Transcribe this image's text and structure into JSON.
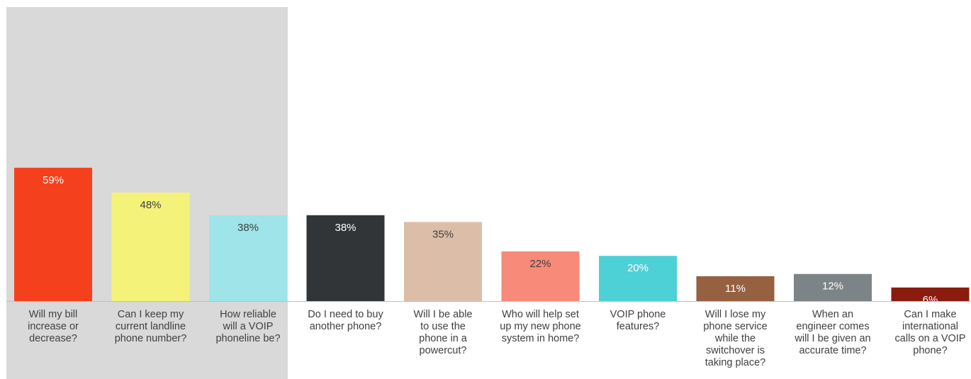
{
  "chart_data": {
    "type": "bar",
    "categories": [
      "Will my bill\nincrease or\ndecrease?",
      "Can I keep my\ncurrent landline\nphone number?",
      "How reliable\nwill a VOIP\nphoneline be?",
      "Do I need to buy\nanother phone?",
      "Will I be able\nto use the\nphone in a\npowercut?",
      "Who will help set\nup my new phone\nsystem in home?",
      "VOIP phone\nfeatures?",
      "Will I lose my\nphone service\nwhile the\nswitchover is\ntaking place?",
      "When an\nengineer comes\nwill I be given an\naccurate time?",
      "Can I make\ninternational\ncalls on a VOIP\nphone?"
    ],
    "values": [
      59,
      48,
      38,
      38,
      35,
      22,
      20,
      11,
      12,
      6
    ],
    "value_labels": [
      "59%",
      "48%",
      "38%",
      "38%",
      "35%",
      "22%",
      "20%",
      "11%",
      "12%",
      "6%"
    ],
    "bar_colors": [
      "#f5401e",
      "#f5f27a",
      "#9ee4e8",
      "#323538",
      "#dcbea8",
      "#f78a78",
      "#4dd0d6",
      "#956140",
      "#7d8487",
      "#8a1b0f"
    ],
    "label_colors": [
      "#ffffff",
      "#404040",
      "#404040",
      "#ffffff",
      "#404040",
      "#404040",
      "#ffffff",
      "#ffffff",
      "#ffffff",
      "#ffffff"
    ],
    "highlight_band": {
      "categories": [
        0,
        1,
        2
      ],
      "color": "#d9d9d9"
    },
    "axis_color": "#bfbfbf",
    "ylim": [
      0,
      100
    ],
    "grid": false,
    "legend": "none",
    "title": "",
    "xlabel": "",
    "ylabel": ""
  }
}
